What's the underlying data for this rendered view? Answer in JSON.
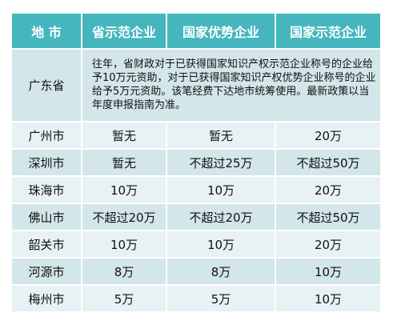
{
  "header": {
    "col0": "地  市",
    "col1": "省示范企业",
    "col2": "国家优势企业",
    "col3": "国家示范企业"
  },
  "guangdong": {
    "city": "广东省",
    "note": "往年，省财政对于已获得国家知识产权示范企业称号的企业给予10万元资助，对于已获得国家知识产权优势企业称号的企业给予5万元资助。该笔经费下达地市统筹使用。最新政策以当年度申报指南为准。"
  },
  "rows": [
    {
      "city": "广州市",
      "provincial": "暂无",
      "national_advantage": "暂无",
      "national_demo": "20万"
    },
    {
      "city": "深圳市",
      "provincial": "暂无",
      "national_advantage": "不超过25万",
      "national_demo": "不超过50万"
    },
    {
      "city": "珠海市",
      "provincial": "10万",
      "national_advantage": "10万",
      "national_demo": "20万"
    },
    {
      "city": "佛山市",
      "provincial": "不超过20万",
      "national_advantage": "不超过20万",
      "national_demo": "不超过50万"
    },
    {
      "city": "韶关市",
      "provincial": "10万",
      "national_advantage": "10万",
      "national_demo": "20万"
    },
    {
      "city": "河源市",
      "provincial": "8万",
      "national_advantage": "8万",
      "national_demo": "10万"
    },
    {
      "city": "梅州市",
      "provincial": "5万",
      "national_advantage": "5万",
      "national_demo": "10万"
    }
  ],
  "colors": {
    "header_bg": "#45b6be",
    "row_dark": "#d3e6e9",
    "row_light": "#e8f1f3"
  }
}
